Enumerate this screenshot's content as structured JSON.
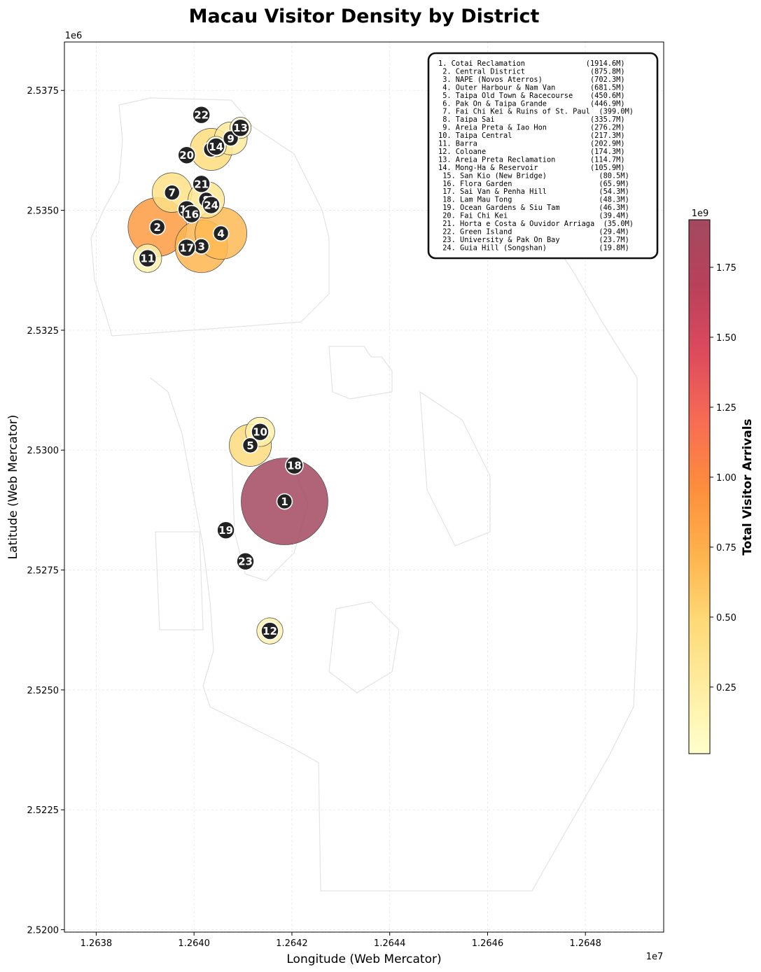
{
  "chart_data": {
    "type": "scatter",
    "title": "Macau Visitor Density by District",
    "xlabel": "Longitude (Web Mercator)",
    "ylabel": "Latitude (Web Mercator)",
    "x_offset_label": "1e7",
    "y_offset_label": "1e6",
    "xlim": [
      12637.35,
      12649.6
    ],
    "ylim": [
      2.51995,
      2.53851
    ],
    "x_ticks": [
      {
        "value": 12638,
        "label": "1.2638"
      },
      {
        "value": 12640,
        "label": "1.2640"
      },
      {
        "value": 12642,
        "label": "1.2642"
      },
      {
        "value": 12644,
        "label": "1.2644"
      },
      {
        "value": 12646,
        "label": "1.2646"
      },
      {
        "value": 12648,
        "label": "1.2648"
      }
    ],
    "y_ticks": [
      {
        "value": 2.52,
        "label": "2.5200"
      },
      {
        "value": 2.5225,
        "label": "2.5225"
      },
      {
        "value": 2.525,
        "label": "2.5250"
      },
      {
        "value": 2.5275,
        "label": "2.5275"
      },
      {
        "value": 2.53,
        "label": "2.5300"
      },
      {
        "value": 2.5325,
        "label": "2.5325"
      },
      {
        "value": 2.535,
        "label": "2.5350"
      },
      {
        "value": 2.5375,
        "label": "2.5375"
      }
    ],
    "grid": true,
    "colorbar": {
      "label": "Total Visitor Arrivals",
      "offset_label": "1e9",
      "range": [
        0.012,
        1.92
      ],
      "ticks": [
        {
          "value": 0.25,
          "label": "0.25"
        },
        {
          "value": 0.5,
          "label": "0.50"
        },
        {
          "value": 0.75,
          "label": "0.75"
        },
        {
          "value": 1.0,
          "label": "1.00"
        },
        {
          "value": 1.25,
          "label": "1.25"
        },
        {
          "value": 1.5,
          "label": "1.50"
        },
        {
          "value": 1.75,
          "label": "1.75"
        }
      ],
      "colors": [
        "#ffffcc",
        "#ffeda0",
        "#fed976",
        "#feb24c",
        "#fd8d3c",
        "#f76b55",
        "#dd4a5d",
        "#b9415a",
        "#a3495f"
      ]
    },
    "legend_placement": "top-right",
    "legend_entries": [
      "1. Cotai Reclamation              (1914.6M)",
      " 2. Central District               (875.8M)",
      " 3. NAPE (Novos Aterros)           (702.3M)",
      " 4. Outer Harbour & Nam Van        (681.5M)",
      " 5. Taipa Old Town & Racecourse    (450.6M)",
      " 6. Pak On & Taipa Grande          (446.9M)",
      " 7. Fai Chi Kei & Ruins of St. Paul  (399.0M)",
      " 8. Taipa Sai                      (335.7M)",
      " 9. Areia Preta & Iao Hon          (276.2M)",
      "10. Taipa Central                  (217.3M)",
      "11. Barra                          (202.9M)",
      "12. Coloane                        (174.3M)",
      "13. Areia Preta Reclamation        (114.7M)",
      "14. Mong-Ha & Reservoir            (105.9M)",
      " 15. San Kio (New Bridge)            (80.5M)",
      " 16. Flora Garden                    (65.9M)",
      " 17. Sai Van & Penha Hill            (54.3M)",
      " 18. Lam Mau Tong                    (48.3M)",
      " 19. Ocean Gardens & Siu Tam         (46.3M)",
      " 20. Fai Chi Kei                     (39.4M)",
      " 21. Horta e Costa & Ouvidor Arriaga  (35.0M)",
      " 22. Green Island                    (29.4M)",
      " 23. University & Pak On Bay         (23.7M)",
      " 24. Guia Hill (Songshan)            (19.8M)"
    ],
    "points": [
      {
        "id": 1,
        "x": 12641.85,
        "y": 2.52893,
        "value": 1914.6
      },
      {
        "id": 2,
        "x": 12639.25,
        "y": 2.53465,
        "value": 875.8
      },
      {
        "id": 3,
        "x": 12640.15,
        "y": 2.53425,
        "value": 702.3
      },
      {
        "id": 4,
        "x": 12640.55,
        "y": 2.53452,
        "value": 681.5
      },
      {
        "id": 5,
        "x": 12641.15,
        "y": 2.5301,
        "value": 450.6
      },
      {
        "id": 6,
        "x": 12640.35,
        "y": 2.53627,
        "value": 446.9
      },
      {
        "id": 7,
        "x": 12639.55,
        "y": 2.53537,
        "value": 399.0
      },
      {
        "id": 8,
        "x": 12640.25,
        "y": 2.53522,
        "value": 335.7
      },
      {
        "id": 9,
        "x": 12640.75,
        "y": 2.5365,
        "value": 276.2
      },
      {
        "id": 10,
        "x": 12641.35,
        "y": 2.53038,
        "value": 217.3
      },
      {
        "id": 11,
        "x": 12639.05,
        "y": 2.534,
        "value": 202.9
      },
      {
        "id": 12,
        "x": 12641.55,
        "y": 2.52623,
        "value": 174.3
      },
      {
        "id": 13,
        "x": 12640.95,
        "y": 2.53672,
        "value": 114.7
      },
      {
        "id": 14,
        "x": 12640.45,
        "y": 2.53633,
        "value": 105.9
      },
      {
        "id": 15,
        "x": 12639.85,
        "y": 2.53502,
        "value": 80.5
      },
      {
        "id": 16,
        "x": 12639.95,
        "y": 2.53492,
        "value": 65.9
      },
      {
        "id": 17,
        "x": 12639.85,
        "y": 2.53422,
        "value": 54.3
      },
      {
        "id": 18,
        "x": 12642.05,
        "y": 2.52968,
        "value": 48.3
      },
      {
        "id": 19,
        "x": 12640.65,
        "y": 2.52833,
        "value": 46.3
      },
      {
        "id": 20,
        "x": 12639.85,
        "y": 2.53615,
        "value": 39.4
      },
      {
        "id": 21,
        "x": 12640.15,
        "y": 2.53555,
        "value": 35.0
      },
      {
        "id": 22,
        "x": 12640.15,
        "y": 2.53699,
        "value": 29.4
      },
      {
        "id": 23,
        "x": 12641.05,
        "y": 2.52768,
        "value": 23.7
      },
      {
        "id": 24,
        "x": 12640.35,
        "y": 2.53511,
        "value": 19.8
      }
    ]
  }
}
